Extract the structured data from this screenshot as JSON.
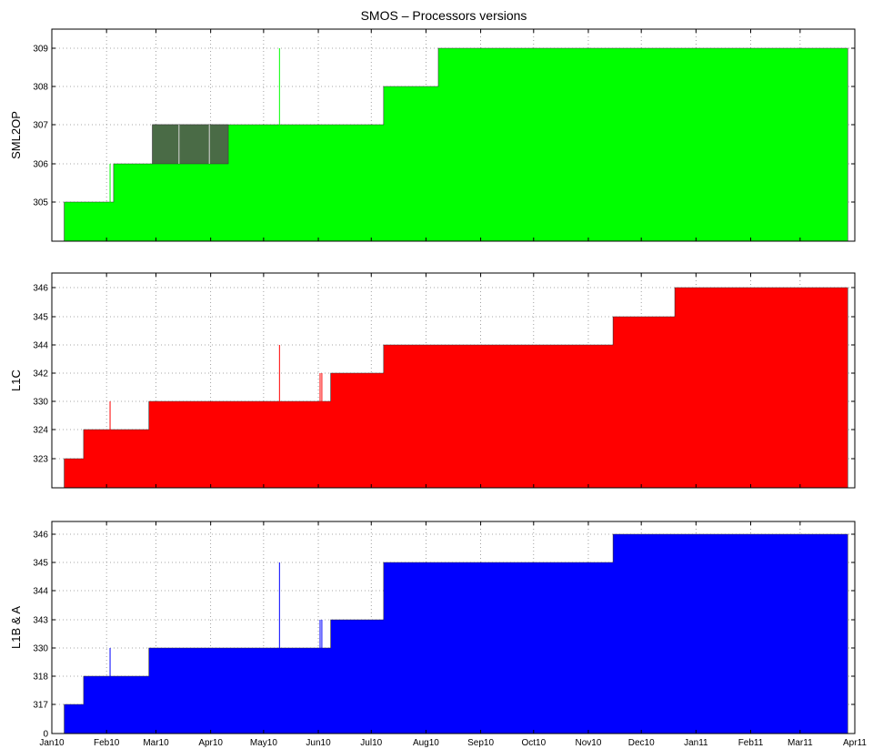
{
  "chart_data": {
    "type": "area",
    "title": "SMOS – Processors versions",
    "x_ticks": [
      "Jan10",
      "Feb10",
      "Mar10",
      "Apr10",
      "May10",
      "Jun10",
      "Jul10",
      "Aug10",
      "Sep10",
      "Oct10",
      "Nov10",
      "Dec10",
      "Jan11",
      "Feb11",
      "Mar11",
      "Apr11"
    ],
    "x_tick_dates": [
      "2010-01-01",
      "2010-02-01",
      "2010-03-01",
      "2010-04-01",
      "2010-05-01",
      "2010-06-01",
      "2010-07-01",
      "2010-08-01",
      "2010-09-01",
      "2010-10-01",
      "2010-11-01",
      "2010-12-01",
      "2011-01-01",
      "2011-02-01",
      "2011-03-01",
      "2011-04-01"
    ],
    "xlim": [
      "2010-01-01",
      "2011-04-01"
    ],
    "grid": true,
    "panels": [
      {
        "ylabel": "SML2OP",
        "color": "#00ff00",
        "levels": [
          "305",
          "306",
          "307",
          "308",
          "309"
        ],
        "show_bottom_tick": false,
        "steps": [
          {
            "date": "2010-01-08",
            "version": "305"
          },
          {
            "date": "2010-02-05",
            "version": "306"
          },
          {
            "date": "2010-02-27",
            "version": "307"
          },
          {
            "date": "2010-07-08",
            "version": "308"
          },
          {
            "date": "2010-08-08",
            "version": "309"
          }
        ],
        "end_date": "2011-03-28",
        "spikes": [
          {
            "date": "2010-02-03",
            "version": "306"
          },
          {
            "date": "2010-05-10",
            "version": "309"
          }
        ],
        "bands": [
          {
            "start": "2010-02-27",
            "end": "2010-04-11",
            "version": "307",
            "color": "#4a6b46"
          }
        ]
      },
      {
        "ylabel": "L1C",
        "color": "#ff0000",
        "levels": [
          "323",
          "324",
          "330",
          "342",
          "344",
          "345",
          "346"
        ],
        "show_bottom_tick": false,
        "steps": [
          {
            "date": "2010-01-08",
            "version": "323"
          },
          {
            "date": "2010-01-19",
            "version": "324"
          },
          {
            "date": "2010-02-25",
            "version": "330"
          },
          {
            "date": "2010-06-08",
            "version": "342"
          },
          {
            "date": "2010-07-08",
            "version": "344"
          },
          {
            "date": "2010-11-15",
            "version": "345"
          },
          {
            "date": "2010-12-20",
            "version": "346"
          }
        ],
        "end_date": "2011-03-28",
        "spikes": [
          {
            "date": "2010-02-03",
            "version": "330"
          },
          {
            "date": "2010-05-10",
            "version": "344"
          },
          {
            "date": "2010-06-02",
            "version": "342"
          },
          {
            "date": "2010-06-03",
            "version": "342"
          }
        ],
        "bands": []
      },
      {
        "ylabel": "L1B & A",
        "color": "#0000ff",
        "levels": [
          "317",
          "318",
          "330",
          "343",
          "344",
          "345",
          "346"
        ],
        "show_bottom_tick": true,
        "bottom_tick_label": "0",
        "steps": [
          {
            "date": "2010-01-08",
            "version": "317"
          },
          {
            "date": "2010-01-19",
            "version": "318"
          },
          {
            "date": "2010-02-25",
            "version": "330"
          },
          {
            "date": "2010-06-08",
            "version": "343"
          },
          {
            "date": "2010-07-08",
            "version": "345"
          },
          {
            "date": "2010-11-15",
            "version": "346"
          }
        ],
        "end_date": "2011-03-28",
        "spikes": [
          {
            "date": "2010-02-03",
            "version": "330"
          },
          {
            "date": "2010-05-10",
            "version": "345"
          },
          {
            "date": "2010-06-02",
            "version": "343"
          },
          {
            "date": "2010-06-03",
            "version": "343"
          }
        ],
        "bands": []
      }
    ]
  }
}
